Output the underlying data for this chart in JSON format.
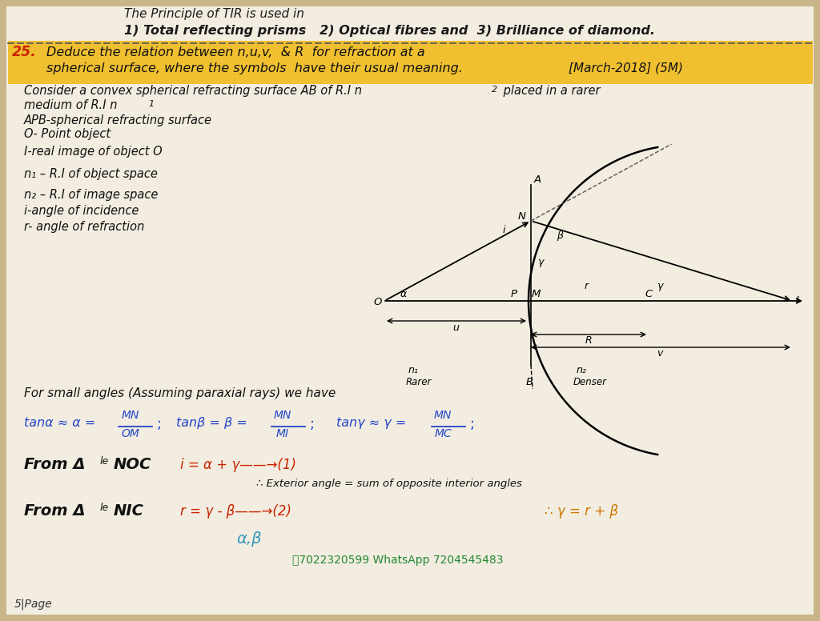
{
  "bg_color": "#c8b58a",
  "page_bg": "#f2ede0",
  "title_line1": "The Principle of TIR is used in",
  "title_line2": "1) Total reflecting prisms   2) Optical fibres and  3) Brilliance of diamond.",
  "highlight_color": "#f0c030",
  "q_number": "25.",
  "q_text1": "Deduce the relation between n,u,v,  & R  for refraction at a",
  "q_text2": "spherical surface, where the symbols  have their usual meaning.",
  "march": "[March-2018] (5M)",
  "para1": "Consider a convex spherical refracting surface AB of R.I n",
  "para1_sub": "2",
  "para1b": " placed in a rarer",
  "para2": "medium of R.I n",
  "para2_sub": "1",
  "leg1": "APB-spherical refracting surface",
  "leg2": "O- Point object",
  "leg3": "I-real image of object O",
  "leg4": "n₁ – R.I of object space",
  "leg5": "n₂ – R.I of image space",
  "leg6": "i-angle of incidence",
  "leg7": "r- angle of refraction",
  "small_angles": "For small angles (Assuming paraxial rays) we have",
  "phone": "⑶7022320599 WhatsApp 7204545483",
  "page": "5|Page"
}
